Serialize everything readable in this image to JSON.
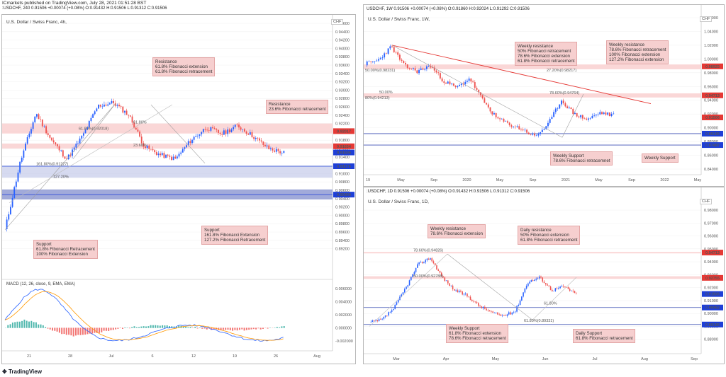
{
  "header": {
    "publisher": "ICmarkets published on TradingView.com, July 28, 2021 01:51:28 BST",
    "symbol_line": ":USDCHF, 240 0.91506 +0.00074 (+0.08%) O:0.91432 H:0.91506 L:0.91312 C:0.91506"
  },
  "brand": "TradingView",
  "colors": {
    "up": "#2962ff",
    "down": "#ef5350",
    "zone": "#f8c9c9",
    "support": "#3f51b5",
    "price_tag": "#e53935",
    "blue_tag": "#1e3fd7"
  },
  "chart_data": [
    {
      "id": "h4",
      "type": "candlestick",
      "title": "U.S. Dollar / Swiss Franc, 4h,",
      "currency": "CHF",
      "ylim": [
        0.886,
        0.946
      ],
      "yticks": [
        "0.94600",
        "0.94400",
        "0.94200",
        "0.94000",
        "0.93800",
        "0.93600",
        "0.93400",
        "0.93200",
        "0.93000",
        "0.92800",
        "0.92600",
        "0.92400",
        "0.92200",
        "0.92000",
        "0.91800",
        "0.91600",
        "0.91400",
        "0.91200",
        "0.91000",
        "0.90800",
        "0.90600",
        "0.90400",
        "0.90200",
        "0.90000",
        "0.89800",
        "0.89600",
        "0.89400",
        "0.89200"
      ],
      "xticks": [
        "21",
        "28",
        "Jul",
        "6",
        "12",
        "19",
        "26",
        "Aug"
      ],
      "price_tags": [
        {
          "value": 0.92017,
          "text": "0.92017",
          "color": "#e53935"
        },
        {
          "value": 0.91654,
          "text": "0.91654",
          "color": "#e53935"
        },
        {
          "value": 0.91506,
          "text": "0.91506",
          "color": "#1e3fd7"
        },
        {
          "value": 0.91176,
          "text": "0.91176",
          "color": "#1e3fd7"
        },
        {
          "value": 0.90496,
          "text": "0.90496",
          "color": "#1e3fd7"
        }
      ],
      "fib_labels": [
        "61.80%(0.92018)",
        "61.80%",
        "23.60%",
        "161.80%(0.91227)",
        "127.20%"
      ],
      "notes": [
        {
          "text": "Resistance\n61.8% Fibonacci extension\n61.8% Fibonacci retracement"
        },
        {
          "text": "Resistance\n23.6% Fibonacci retracement"
        },
        {
          "text": "Support\n61.8% Fibonacci Retracement\n100% Fibonacci Extension"
        },
        {
          "text": "Support\n161.8% Fibonacci Extension\n127.2% Fibonacci Retracement"
        }
      ],
      "macd": {
        "label": "MACD (12, 26, close, 9, EMA, EMA)",
        "yticks": [
          "0.006000",
          "0.004000",
          "0.002000",
          "0.000000",
          "-0.002000"
        ]
      }
    },
    {
      "id": "w1",
      "type": "candlestick",
      "header": "USDCHF, 1W 0.91506 +0.00074 (+0.08%) O:0.91860 H:0.92024 L:0.91292 C:0.91506",
      "title": "U.S. Dollar / Swiss Franc, 1W,",
      "currency": "CHF",
      "ylim": [
        0.84,
        1.06
      ],
      "yticks": [
        "1.06000",
        "1.04000",
        "1.02000",
        "1.00000",
        "0.98000",
        "0.96000",
        "0.94000",
        "0.92000",
        "0.90000",
        "0.88000",
        "0.86000",
        "0.84000"
      ],
      "xticks": [
        "19",
        "May",
        "Sep",
        "2020",
        "May",
        "Sep",
        "2021",
        "May",
        "Sep",
        "2022",
        "May"
      ],
      "price_tags": [
        {
          "value": 0.98925,
          "text": "0.98925",
          "color": "#e53935"
        },
        {
          "value": 0.94713,
          "text": "0.94713",
          "color": "#e53935"
        },
        {
          "value": 0.91506,
          "text": "0.91506",
          "color": "#e53935"
        },
        {
          "value": 0.89146,
          "text": "0.89146",
          "color": "#1e3fd7"
        },
        {
          "value": 0.87487,
          "text": "0.87487",
          "color": "#1e3fd7"
        }
      ],
      "fib_labels": [
        "50.00%(0.98231)",
        "27.20%(0.98217)",
        "50.00%",
        "80%(0.94213)",
        "78.60%(0.94764)"
      ],
      "notes": [
        {
          "text": "Weekly resistance\n50% Fibonacci retracement\n78.6% Fibonacci extension\n61.8% Fibonacci retracement"
        },
        {
          "text": "Weekly resistance\n78.6% Fibonacci retracement\n100% Fibonacci extension\n127.2% Fibonacci extension"
        },
        {
          "text": "Weekly Support\n78.6% Fibonacci retracemnet"
        },
        {
          "text": "Weekly Support"
        }
      ]
    },
    {
      "id": "d1",
      "type": "candlestick",
      "header": ":USDCHF, 1D 0.91506 +0.00074 (+0.08%) O:0.91432 H:0.91506 L:0.91312 C:0.91506",
      "title": "U.S. Dollar / Swiss Franc, 1D,",
      "currency": "CHF",
      "ylim": [
        0.87,
        0.98
      ],
      "yticks": [
        "0.98000",
        "0.97000",
        "0.96000",
        "0.95000",
        "0.94000",
        "0.93000",
        "0.92000",
        "0.91000",
        "0.90000",
        "0.89000",
        "0.88000"
      ],
      "xticks": [
        "Mar",
        "Apr",
        "May",
        "Jun",
        "Jul",
        "Aug",
        "Sep"
      ],
      "price_tags": [
        {
          "value": 0.94713,
          "text": "0.94713",
          "color": "#e53935"
        },
        {
          "value": 0.92755,
          "text": "0.92755",
          "color": "#e53935"
        },
        {
          "value": 0.91506,
          "text": "0.91506",
          "color": "#1e3fd7"
        },
        {
          "value": 0.90462,
          "text": "0.90462",
          "color": "#1e3fd7"
        },
        {
          "value": 0.89146,
          "text": "0.89146",
          "color": "#1e3fd7"
        }
      ],
      "fib_labels": [
        "78.60%(0.94826)",
        "50.00%(0.92788)",
        "61.80%",
        "61.80%(0.89331)"
      ],
      "notes": [
        {
          "text": "Weekly resistance\n78.6% Fibonacci extension"
        },
        {
          "text": "Daily resistance\n50% Fibonacci extension\n61.8% Fibonacci retracement"
        },
        {
          "text": "Weekly Support\n61.8% Fibonacci extension\n78.6% Fibonacci retracement"
        },
        {
          "text": "Daily Support\n61.8% Fibonacci retracement"
        }
      ]
    }
  ]
}
